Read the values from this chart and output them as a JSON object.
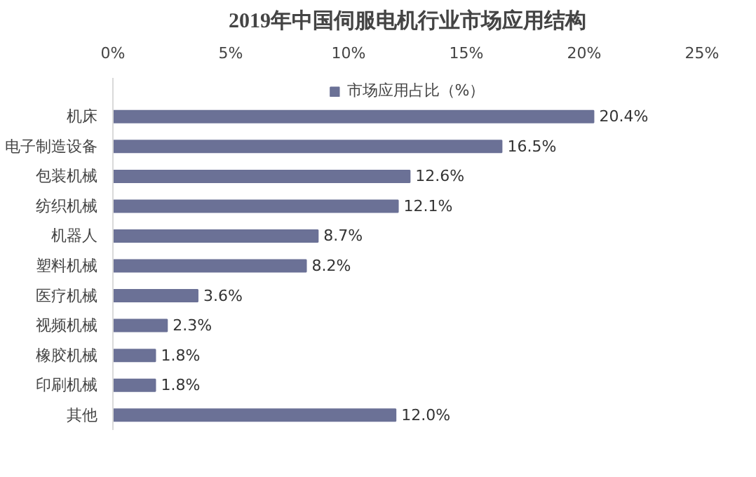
{
  "chart_data": {
    "type": "bar",
    "orientation": "horizontal",
    "title": "2019年中国伺服电机行业市场应用结构",
    "categories": [
      "机床",
      "电子制造设备",
      "包装机械",
      "纺织机械",
      "机器人",
      "塑料机械",
      "医疗机械",
      "视频机械",
      "橡胶机械",
      "印刷机械",
      "其他"
    ],
    "series": [
      {
        "name": "市场应用占比（%）",
        "color": "#6b7196",
        "values": [
          20.4,
          16.5,
          12.6,
          12.1,
          8.7,
          8.2,
          3.6,
          2.3,
          1.8,
          1.8,
          12.0
        ],
        "value_labels": [
          "20.4%",
          "16.5%",
          "12.6%",
          "12.1%",
          "8.7%",
          "8.2%",
          "3.6%",
          "2.3%",
          "1.8%",
          "1.8%",
          "12.0%"
        ]
      }
    ],
    "xlim": [
      0,
      25
    ],
    "xticks": [
      {
        "value": 0,
        "label": "0%"
      },
      {
        "value": 5,
        "label": "5%"
      },
      {
        "value": 10,
        "label": "10%"
      },
      {
        "value": 15,
        "label": "15%"
      },
      {
        "value": 20,
        "label": "20%"
      },
      {
        "value": 25,
        "label": "25%"
      }
    ],
    "legend": "top",
    "grid": false
  }
}
